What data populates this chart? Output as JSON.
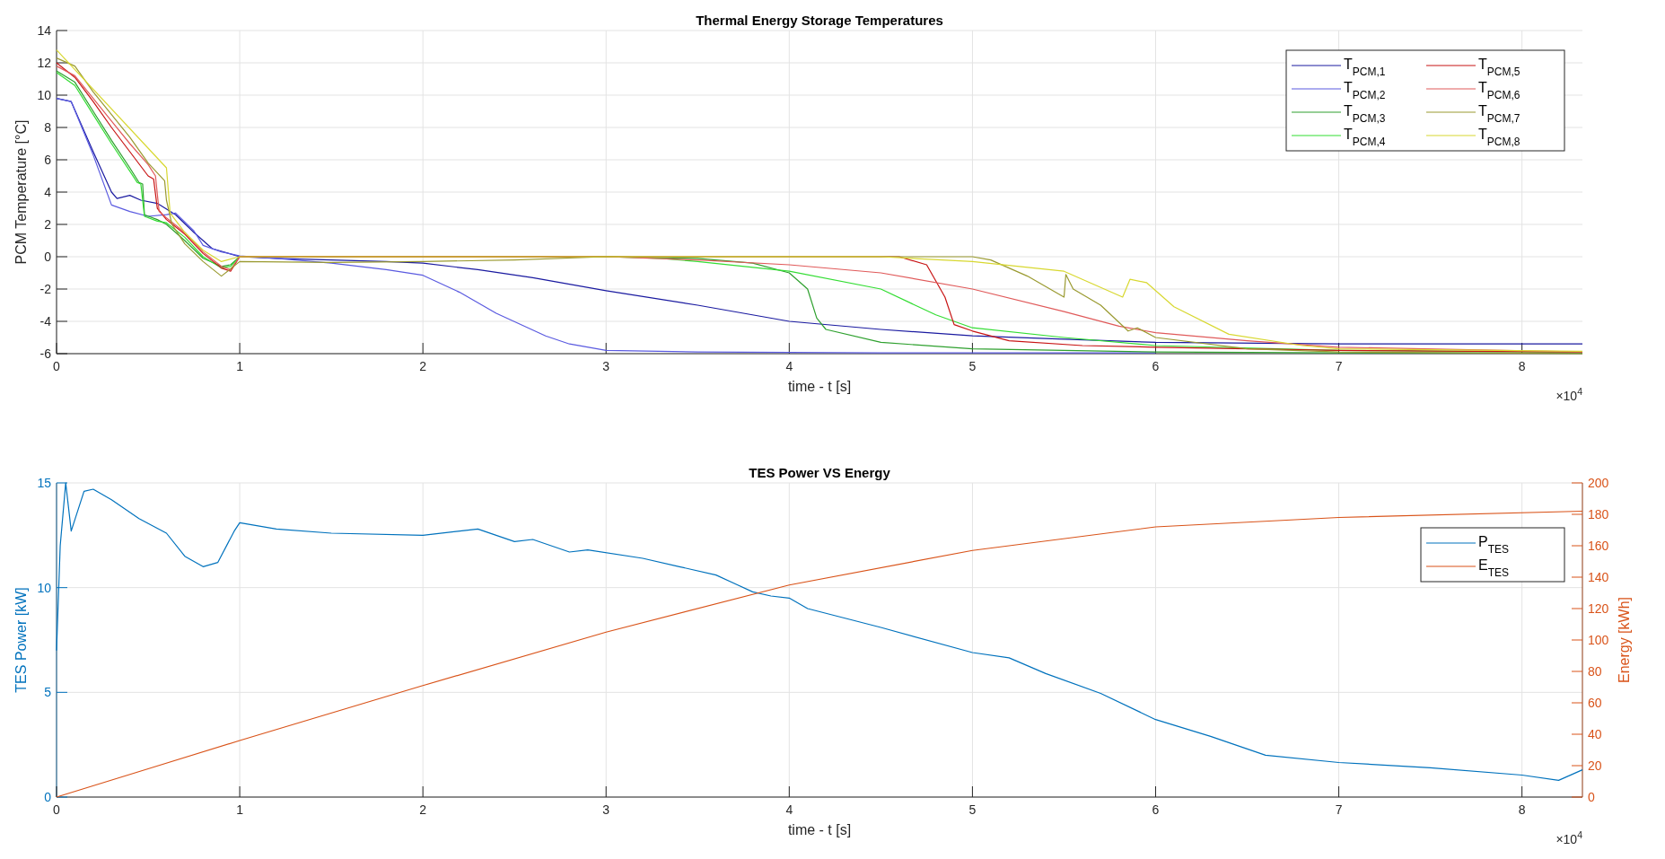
{
  "chart_data": [
    {
      "type": "line",
      "title": "Thermal Energy Storage Temperatures",
      "xlabel": "time - t [s]",
      "ylabel": "PCM Temperature [°C]",
      "annotations": [
        "×10$^{4}$"
      ],
      "xlim": [
        0,
        8.33
      ],
      "xticks": [
        0,
        1,
        2,
        3,
        4,
        5,
        6,
        7,
        8
      ],
      "ylim": [
        -6,
        14
      ],
      "yticks": [
        -6,
        -4,
        -2,
        0,
        2,
        4,
        6,
        8,
        10,
        12,
        14
      ],
      "grid": true,
      "legend": "top right",
      "series": [
        {
          "name": "T$_{PCM,1}$",
          "color": "#1a1aa0",
          "x": [
            0,
            0.08,
            0.2,
            0.3,
            0.33,
            0.4,
            0.46,
            0.55,
            0.65,
            0.75,
            0.85,
            1.0,
            1.2,
            1.5,
            1.8,
            2.0,
            2.3,
            2.6,
            3.0,
            3.5,
            4.0,
            4.5,
            5.0,
            5.5,
            6.0,
            7.0,
            8.33
          ],
          "values": [
            9.8,
            9.6,
            6.5,
            4.0,
            3.6,
            3.8,
            3.5,
            3.3,
            2.6,
            1.5,
            0.5,
            0.0,
            -0.1,
            -0.2,
            -0.3,
            -0.4,
            -0.8,
            -1.3,
            -2.1,
            -3.0,
            -4.0,
            -4.5,
            -4.9,
            -5.1,
            -5.3,
            -5.4,
            -5.4
          ]
        },
        {
          "name": "T$_{PCM,2}$",
          "color": "#5a5ae0",
          "x": [
            0,
            0.08,
            0.2,
            0.3,
            0.4,
            0.5,
            0.6,
            0.65,
            0.75,
            0.8,
            0.9,
            1.0,
            1.2,
            1.5,
            1.8,
            2.0,
            2.2,
            2.4,
            2.67,
            2.8,
            3.0,
            3.5,
            4.5,
            6.0
          ],
          "values": [
            9.8,
            9.6,
            6.3,
            3.2,
            2.8,
            2.5,
            2.6,
            2.7,
            1.6,
            0.7,
            0.3,
            0.05,
            -0.1,
            -0.4,
            -0.8,
            -1.15,
            -2.2,
            -3.5,
            -4.9,
            -5.4,
            -5.8,
            -5.9,
            -5.95,
            -5.95
          ]
        },
        {
          "name": "T$_{PCM,3}$",
          "color": "#2ea02e",
          "x": [
            0,
            0.1,
            0.2,
            0.3,
            0.4,
            0.45,
            0.47,
            0.48,
            0.55,
            0.6,
            0.7,
            0.8,
            0.9,
            0.95,
            1.0,
            2.0,
            3.0,
            3.5,
            3.8,
            4.0,
            4.1,
            4.15,
            4.2,
            4.5,
            5.0,
            6.0,
            7.0,
            8.33
          ],
          "values": [
            11.5,
            10.8,
            9.0,
            7.2,
            5.5,
            4.6,
            4.5,
            2.6,
            2.3,
            2.0,
            1.0,
            -0.1,
            -0.6,
            -0.5,
            0,
            0,
            0,
            -0.1,
            -0.4,
            -1.0,
            -2.0,
            -3.8,
            -4.5,
            -5.3,
            -5.7,
            -5.9,
            -5.95,
            -5.95
          ]
        },
        {
          "name": "T$_{PCM,4}$",
          "color": "#33dd33",
          "x": [
            0,
            0.1,
            0.2,
            0.3,
            0.4,
            0.44,
            0.46,
            0.48,
            0.55,
            0.6,
            0.7,
            0.8,
            0.9,
            0.95,
            1.0,
            2.0,
            3.0,
            3.3,
            3.5,
            4.0,
            4.5,
            4.8,
            5.0,
            5.5,
            6.0,
            7.0,
            8.33
          ],
          "values": [
            11.4,
            10.6,
            8.8,
            7.0,
            5.3,
            4.6,
            4.5,
            2.5,
            2.2,
            2.1,
            1.2,
            0.0,
            -0.7,
            -0.6,
            0,
            0,
            0,
            -0.1,
            -0.3,
            -0.9,
            -2.0,
            -3.6,
            -4.4,
            -5.0,
            -5.5,
            -5.8,
            -5.9
          ]
        },
        {
          "name": "T$_{PCM,5}$",
          "color": "#c81414",
          "x": [
            0,
            0.1,
            0.2,
            0.3,
            0.4,
            0.5,
            0.53,
            0.55,
            0.6,
            0.7,
            0.8,
            0.9,
            0.95,
            1.0,
            2.0,
            3.0,
            4.0,
            4.6,
            4.75,
            4.85,
            4.9,
            5.0,
            5.2,
            5.6,
            6.0,
            7.0,
            8.33
          ],
          "values": [
            12.0,
            11.1,
            9.6,
            8.0,
            6.5,
            5.0,
            4.8,
            3.0,
            2.3,
            1.4,
            0.2,
            -0.7,
            -0.9,
            0,
            0,
            0,
            0,
            0,
            -0.5,
            -2.5,
            -4.2,
            -4.6,
            -5.2,
            -5.5,
            -5.6,
            -5.8,
            -5.9
          ]
        },
        {
          "name": "T$_{PCM,6}$",
          "color": "#e05a5a",
          "x": [
            0,
            0.1,
            0.2,
            0.3,
            0.4,
            0.5,
            0.54,
            0.56,
            0.6,
            0.7,
            0.8,
            0.9,
            0.95,
            1.0,
            2.0,
            3.0,
            3.5,
            4.0,
            4.5,
            5.0,
            5.5,
            5.8,
            6.0,
            6.5,
            7.0,
            8.33
          ],
          "values": [
            11.8,
            11.2,
            9.8,
            8.4,
            7.0,
            5.7,
            5.0,
            2.8,
            2.4,
            1.5,
            0.3,
            -0.6,
            -0.8,
            0,
            0,
            0,
            -0.2,
            -0.5,
            -1.0,
            -2.0,
            -3.4,
            -4.3,
            -4.7,
            -5.2,
            -5.6,
            -5.9
          ]
        },
        {
          "name": "T$_{PCM,7}$",
          "color": "#9a9a30",
          "x": [
            0,
            0.1,
            0.2,
            0.3,
            0.4,
            0.5,
            0.59,
            0.6,
            0.63,
            0.7,
            0.8,
            0.9,
            1.0,
            1.5,
            2.0,
            2.5,
            3.0,
            4.0,
            5.0,
            5.1,
            5.3,
            5.5,
            5.51,
            5.55,
            5.7,
            5.85,
            5.9,
            6.0,
            6.5,
            7.0,
            8.33
          ],
          "values": [
            12.3,
            11.8,
            10.2,
            8.8,
            7.4,
            5.8,
            4.7,
            3.5,
            2.0,
            0.8,
            -0.3,
            -1.2,
            -0.3,
            -0.35,
            -0.3,
            -0.2,
            0,
            0,
            0,
            -0.2,
            -1.2,
            -2.5,
            -1.1,
            -2.0,
            -3.0,
            -4.6,
            -4.4,
            -5.0,
            -5.7,
            -5.9,
            -6.0
          ]
        },
        {
          "name": "T$_{PCM,8}$",
          "color": "#d8d830",
          "x": [
            0,
            0.6,
            0.62,
            0.7,
            0.8,
            0.9,
            1.0,
            4.0,
            4.5,
            5.0,
            5.5,
            5.82,
            5.86,
            5.95,
            6.1,
            6.4,
            6.8,
            7.0,
            8.33
          ],
          "values": [
            12.8,
            5.5,
            2.7,
            1.5,
            0.4,
            -0.3,
            0,
            0,
            0,
            -0.3,
            -0.9,
            -2.5,
            -1.4,
            -1.6,
            -3.1,
            -4.8,
            -5.5,
            -5.7,
            -5.85
          ]
        }
      ]
    },
    {
      "type": "line",
      "title": "TES Power VS Energy",
      "xlabel": "time - t [s]",
      "ylabel": "TES Power [kW]",
      "y2label": "Energy [kWh]",
      "annotations": [
        "×10$^{4}$"
      ],
      "xlim": [
        0,
        8.33
      ],
      "xticks": [
        0,
        1,
        2,
        3,
        4,
        5,
        6,
        7,
        8
      ],
      "ylim": [
        0,
        15
      ],
      "yticks": [
        0,
        5,
        10,
        15
      ],
      "y2lim": [
        0,
        200
      ],
      "y2ticks": [
        0,
        20,
        40,
        60,
        80,
        100,
        120,
        140,
        160,
        180,
        200
      ],
      "grid": true,
      "legend": "top right",
      "series": [
        {
          "name": "P$_{TES}$",
          "color": "#0072bd",
          "x": [
            0,
            0.02,
            0.05,
            0.08,
            0.15,
            0.2,
            0.3,
            0.45,
            0.6,
            0.7,
            0.8,
            0.88,
            0.97,
            1.0,
            1.2,
            1.5,
            2.0,
            2.3,
            2.5,
            2.6,
            2.8,
            2.9,
            3.2,
            3.4,
            3.6,
            3.7,
            3.8,
            3.9,
            4.0,
            4.1,
            4.5,
            5.0,
            5.2,
            5.4,
            5.7,
            6.0,
            6.3,
            6.6,
            7.0,
            7.5,
            8.0,
            8.2,
            8.33
          ],
          "values": [
            7,
            12,
            15,
            12.7,
            14.6,
            14.7,
            14.2,
            13.3,
            12.6,
            11.5,
            11.0,
            11.2,
            12.7,
            13.1,
            12.8,
            12.6,
            12.5,
            12.8,
            12.2,
            12.3,
            11.7,
            11.8,
            11.4,
            11.0,
            10.6,
            10.2,
            9.8,
            9.6,
            9.5,
            9.0,
            8.1,
            6.9,
            6.65,
            5.9,
            4.95,
            3.7,
            2.9,
            2.0,
            1.65,
            1.4,
            1.05,
            0.8,
            1.3
          ]
        },
        {
          "name": "E$_{TES}$",
          "color": "#d95319",
          "axis": "y2",
          "x": [
            0,
            0.5,
            1.0,
            2.0,
            3.0,
            4.0,
            5.0,
            6.0,
            7.0,
            8.33
          ],
          "values": [
            0,
            18,
            36,
            71,
            105,
            135,
            157,
            172,
            178,
            182
          ]
        }
      ]
    }
  ]
}
